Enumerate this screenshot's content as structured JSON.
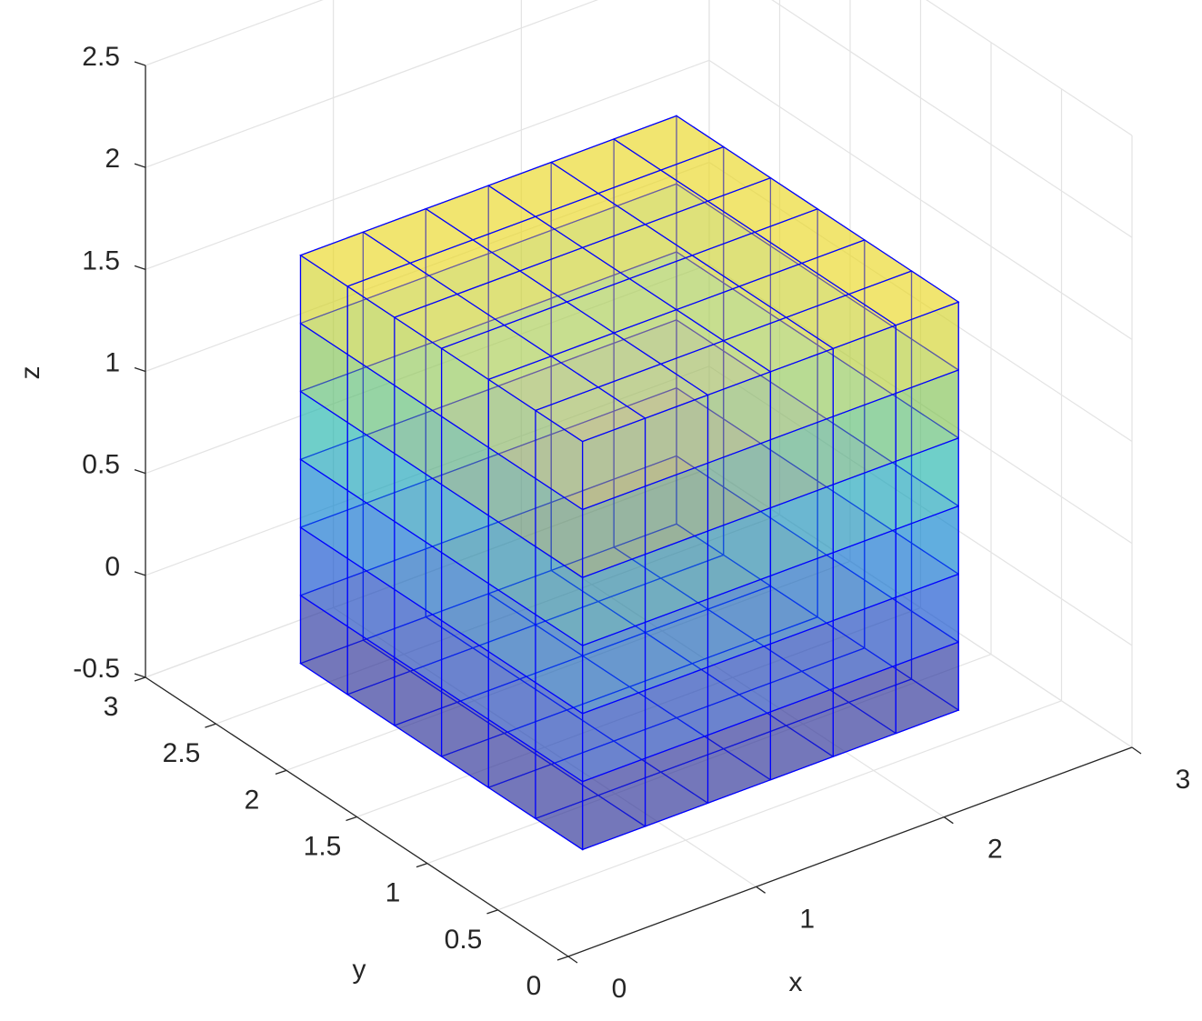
{
  "chart_data": {
    "type": "mesh3d",
    "x_label": "x",
    "y_label": "y",
    "z_label": "z",
    "xlim": [
      0,
      3
    ],
    "ylim": [
      0,
      3
    ],
    "zlim": [
      -0.5,
      2.5
    ],
    "xticks": [
      0,
      1,
      2,
      3
    ],
    "yticks": [
      0,
      0.5,
      1,
      1.5,
      2,
      2.5,
      3
    ],
    "zticks": [
      -0.5,
      0,
      0.5,
      1,
      1.5,
      2,
      2.5
    ],
    "grid": true,
    "edge_color": "#0000ff"
  }
}
